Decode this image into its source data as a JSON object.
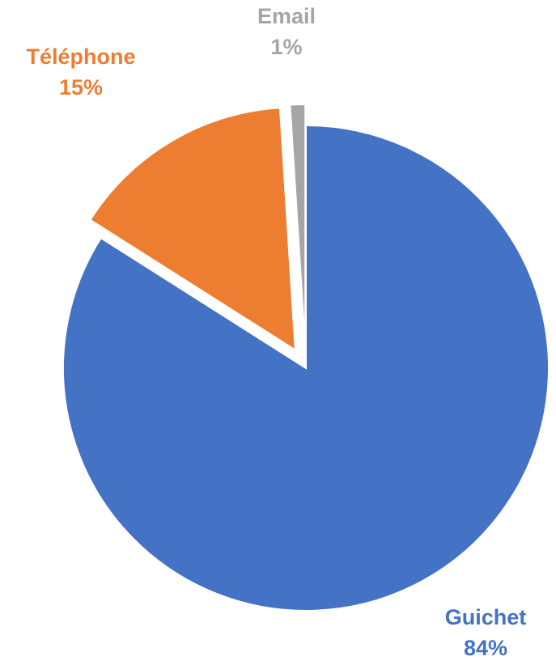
{
  "chart_data": {
    "type": "pie",
    "slices": [
      {
        "category": "Guichet",
        "value": 84,
        "value_label": "84%",
        "color": "#4472C4",
        "exploded": false
      },
      {
        "category": "Téléphone",
        "value": 15,
        "value_label": "15%",
        "color": "#ED7D31",
        "exploded": true
      },
      {
        "category": "Email",
        "value": 1,
        "value_label": "1%",
        "color": "#A5A5A5",
        "exploded": true
      }
    ],
    "start_angle": "12 o'clock",
    "direction": "clockwise",
    "legend": "none",
    "data_labels": "category name and percentage, colored like slice, outside"
  }
}
